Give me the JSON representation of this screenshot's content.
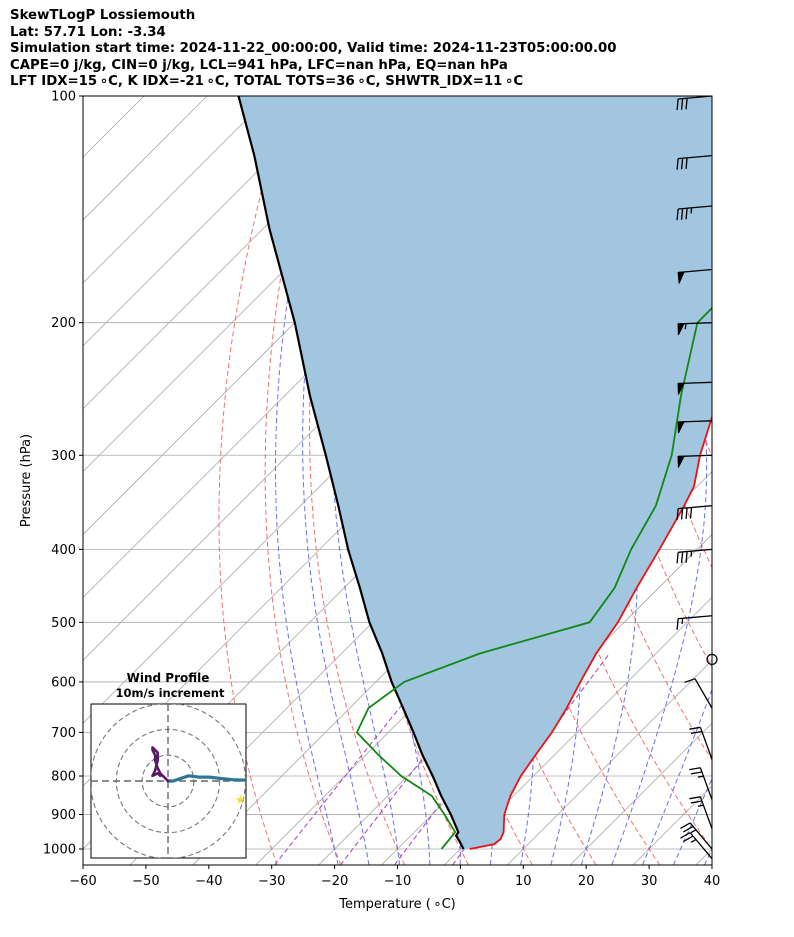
{
  "header": {
    "line1": "SkewTLogP Lossiemouth",
    "line2": "Lat: 57.71   Lon: -3.34",
    "line3": "Simulation start time: 2024-11-22_00:00:00, Valid time: 2024-11-23T05:00:00.00",
    "line4": "CAPE=0 j/kg, CIN=0 j/kg, LCL=941 hPa, LFC=nan hPa, EQ=nan hPa",
    "line5": "LFT IDX=15 ∘C, K IDX=-21 ∘C, TOTAL TOTS=36 ∘C, SHWTR_IDX=11 ∘C"
  },
  "chart_data": {
    "type": "line",
    "xlabel": "Temperature ( ∘C)",
    "ylabel": "Pressure (hPa)",
    "xlim": [
      -60,
      40
    ],
    "ylim": [
      1050,
      100
    ],
    "y_scale": "log",
    "skew": true,
    "x_ticks": [
      "−60",
      "−50",
      "−40",
      "−30",
      "−20",
      "−10",
      "0",
      "10",
      "20",
      "30",
      "40"
    ],
    "y_ticks": [
      "100",
      "200",
      "300",
      "400",
      "500",
      "600",
      "700",
      "800",
      "900",
      "1000"
    ],
    "grid": true,
    "colors": {
      "temperature": "#ee1111",
      "dewpoint": "#118811",
      "parcel": "#000000",
      "shading": "#a2c6e0",
      "dry_adiabats": "#f07070",
      "moist_adiabats": "#6670ee",
      "mixing_ratio": "#a040c0",
      "isotherms": "#aaaaaa",
      "hodograph_low": "#5a1a6a",
      "hodograph_high": "#2f7596",
      "storm_marker": "#f0e040"
    },
    "series": [
      {
        "name": "temperature",
        "values": [
          [
            1000,
            1.5
          ],
          [
            985,
            4.6
          ],
          [
            970,
            4.8
          ],
          [
            950,
            4.2
          ],
          [
            900,
            1.5
          ],
          [
            850,
            -0.5
          ],
          [
            800,
            -2.0
          ],
          [
            750,
            -3.0
          ],
          [
            700,
            -4.0
          ],
          [
            650,
            -5.5
          ],
          [
            600,
            -7.5
          ],
          [
            550,
            -9.5
          ],
          [
            500,
            -11.0
          ],
          [
            450,
            -13.5
          ],
          [
            400,
            -16.0
          ],
          [
            350,
            -19.0
          ],
          [
            330,
            -20.5
          ],
          [
            300,
            -24.5
          ],
          [
            250,
            -31.0
          ],
          [
            200,
            -42.0
          ],
          [
            180,
            -42.0
          ],
          [
            160,
            -42.0
          ],
          [
            140,
            -43.0
          ],
          [
            120,
            -44.0
          ],
          [
            110,
            -45.5
          ],
          [
            100,
            -47.0
          ]
        ]
      },
      {
        "name": "dewpoint",
        "values": [
          [
            1000,
            -3.0
          ],
          [
            950,
            -3.5
          ],
          [
            900,
            -8.0
          ],
          [
            850,
            -13.0
          ],
          [
            800,
            -21.0
          ],
          [
            750,
            -28.0
          ],
          [
            700,
            -35.0
          ],
          [
            650,
            -37.0
          ],
          [
            600,
            -35.5
          ],
          [
            550,
            -28.0
          ],
          [
            500,
            -15.5
          ],
          [
            450,
            -17.0
          ],
          [
            400,
            -20.5
          ],
          [
            350,
            -23.5
          ],
          [
            300,
            -29.0
          ],
          [
            250,
            -37.0
          ],
          [
            200,
            -46.0
          ],
          [
            180,
            -46.0
          ],
          [
            170,
            -47.0
          ],
          [
            160,
            -46.0
          ],
          [
            150,
            -49.0
          ],
          [
            140,
            -51.0
          ],
          [
            120,
            -51.5
          ],
          [
            110,
            -51.5
          ],
          [
            100,
            -52.0
          ]
        ]
      },
      {
        "name": "parcel",
        "values": [
          [
            1000,
            0.5
          ],
          [
            975,
            -1.5
          ],
          [
            960,
            -2.8
          ],
          [
            950,
            -3.0
          ],
          [
            900,
            -7.0
          ],
          [
            850,
            -11.5
          ],
          [
            800,
            -16.0
          ],
          [
            750,
            -21.0
          ],
          [
            700,
            -26.0
          ],
          [
            650,
            -31.5
          ],
          [
            600,
            -37.5
          ],
          [
            550,
            -43.5
          ],
          [
            500,
            -50.5
          ],
          [
            450,
            -57.5
          ],
          [
            400,
            -65.5
          ],
          [
            350,
            -74.0
          ],
          [
            300,
            -84.0
          ],
          [
            250,
            -96.0
          ],
          [
            200,
            -110.0
          ],
          [
            150,
            -129.0
          ],
          [
            120,
            -143.0
          ],
          [
            100,
            -155.0
          ]
        ]
      }
    ],
    "wind_barbs": [
      {
        "p": 100,
        "speed_kt": 30,
        "dir_deg": 265
      },
      {
        "p": 120,
        "speed_kt": 30,
        "dir_deg": 265
      },
      {
        "p": 140,
        "speed_kt": 35,
        "dir_deg": 265
      },
      {
        "p": 170,
        "speed_kt": 50,
        "dir_deg": 265
      },
      {
        "p": 200,
        "speed_kt": 55,
        "dir_deg": 268
      },
      {
        "p": 240,
        "speed_kt": 50,
        "dir_deg": 268
      },
      {
        "p": 270,
        "speed_kt": 50,
        "dir_deg": 268
      },
      {
        "p": 300,
        "speed_kt": 50,
        "dir_deg": 268
      },
      {
        "p": 350,
        "speed_kt": 40,
        "dir_deg": 265
      },
      {
        "p": 400,
        "speed_kt": 35,
        "dir_deg": 265
      },
      {
        "p": 490,
        "speed_kt": 15,
        "dir_deg": 265
      },
      {
        "p": 560,
        "speed_kt": 0,
        "dir_deg": 0
      },
      {
        "p": 650,
        "speed_kt": 10,
        "dir_deg": 330
      },
      {
        "p": 760,
        "speed_kt": 20,
        "dir_deg": 340
      },
      {
        "p": 860,
        "speed_kt": 25,
        "dir_deg": 340
      },
      {
        "p": 940,
        "speed_kt": 25,
        "dir_deg": 340
      },
      {
        "p": 1000,
        "speed_kt": 25,
        "dir_deg": 320
      },
      {
        "p": 1030,
        "speed_kt": 25,
        "dir_deg": 320
      }
    ],
    "hodograph": {
      "title": "Wind Profile",
      "subtitle": "10m/s increment",
      "ring_increment_ms": 10,
      "u_range": [
        -30,
        30
      ],
      "v_range": [
        -30,
        30
      ],
      "storm_motion": [
        28,
        -7
      ],
      "low_levels": [
        [
          0,
          0
        ],
        [
          -2,
          2
        ],
        [
          -3,
          3
        ],
        [
          -4,
          5
        ],
        [
          -5,
          8
        ],
        [
          -5,
          10
        ],
        [
          -6,
          12
        ],
        [
          -6,
          13
        ],
        [
          -4,
          11
        ],
        [
          -4,
          8
        ],
        [
          -5,
          4
        ],
        [
          -6,
          2
        ],
        [
          -4,
          3
        ],
        [
          -3,
          2
        ]
      ],
      "upper_levels": [
        [
          0,
          0
        ],
        [
          2,
          0
        ],
        [
          5,
          1
        ],
        [
          8,
          2
        ],
        [
          12,
          1.5
        ],
        [
          16,
          1.5
        ],
        [
          20,
          1
        ],
        [
          25,
          0.5
        ],
        [
          30,
          0.3
        ]
      ]
    }
  }
}
